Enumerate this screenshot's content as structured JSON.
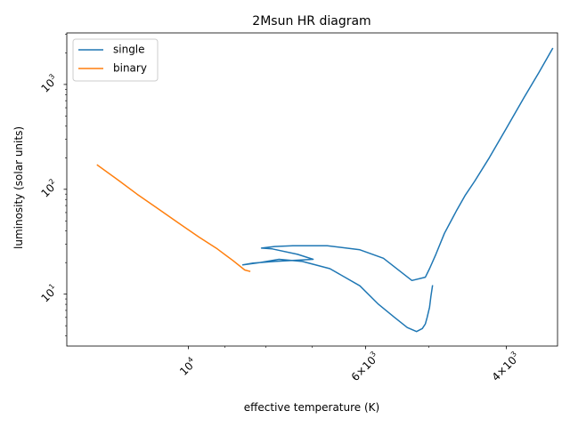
{
  "chart_data": {
    "type": "line",
    "title": "2Msun HR diagram",
    "xlabel": "effective temperature (K)",
    "ylabel": "luminosity (solar units)",
    "x_scale": "log",
    "y_scale": "log",
    "x_inverted": true,
    "xlim": [
      14200,
      3450
    ],
    "ylim": [
      3.2,
      3100
    ],
    "x_tick_labels": [
      {
        "value": 10000,
        "base": "10",
        "exp": "4",
        "label": "10^4"
      },
      {
        "value": 6000,
        "base": "6×10",
        "exp": "3",
        "label": "6×10^3"
      },
      {
        "value": 4000,
        "base": "4×10",
        "exp": "3",
        "label": "4×10^3"
      }
    ],
    "x_minor_ticks": [
      9000,
      8000,
      7000,
      5000
    ],
    "y_tick_labels": [
      {
        "value": 10,
        "base": "10",
        "exp": "1",
        "label": "10^1"
      },
      {
        "value": 100,
        "base": "10",
        "exp": "2",
        "label": "10^2"
      },
      {
        "value": 1000,
        "base": "10",
        "exp": "3",
        "label": "10^3"
      }
    ],
    "legend_position": "top-left",
    "series": [
      {
        "name": "single",
        "color": "#1f77b4",
        "points": [
          [
            4947,
            12.0
          ],
          [
            4970,
            9.5
          ],
          [
            4990,
            7.5
          ],
          [
            5025,
            6.0
          ],
          [
            5050,
            5.2
          ],
          [
            5095,
            4.7
          ],
          [
            5180,
            4.4
          ],
          [
            5320,
            4.8
          ],
          [
            5520,
            6.0
          ],
          [
            5780,
            8.0
          ],
          [
            6100,
            12.0
          ],
          [
            6650,
            17.5
          ],
          [
            7200,
            20.5
          ],
          [
            7700,
            21.5
          ],
          [
            8150,
            20.0
          ],
          [
            8550,
            19.0
          ],
          [
            8300,
            19.8
          ],
          [
            7800,
            20.5
          ],
          [
            7400,
            21.0
          ],
          [
            6980,
            21.5
          ],
          [
            7300,
            24.0
          ],
          [
            7850,
            27.0
          ],
          [
            8100,
            27.5
          ],
          [
            7800,
            28.5
          ],
          [
            7400,
            29.0
          ],
          [
            6700,
            29.0
          ],
          [
            6100,
            26.5
          ],
          [
            5700,
            22.0
          ],
          [
            5250,
            13.5
          ],
          [
            5050,
            14.5
          ],
          [
            4990,
            17.5
          ],
          [
            4900,
            24.0
          ],
          [
            4780,
            38.0
          ],
          [
            4620,
            62.0
          ],
          [
            4500,
            88.0
          ],
          [
            4380,
            120.0
          ],
          [
            4200,
            200.0
          ],
          [
            4000,
            380.0
          ],
          [
            3800,
            750.0
          ],
          [
            3640,
            1300.0
          ],
          [
            3500,
            2200.0
          ]
        ]
      },
      {
        "name": "binary",
        "color": "#ff7f0e",
        "points": [
          [
            13000,
            170.0
          ],
          [
            12200,
            120.0
          ],
          [
            11600,
            90.0
          ],
          [
            11000,
            68.0
          ],
          [
            10300,
            48.0
          ],
          [
            9700,
            35.0
          ],
          [
            9200,
            27.0
          ],
          [
            8800,
            21.0
          ],
          [
            8500,
            17.0
          ],
          [
            8380,
            16.5
          ]
        ]
      }
    ]
  }
}
